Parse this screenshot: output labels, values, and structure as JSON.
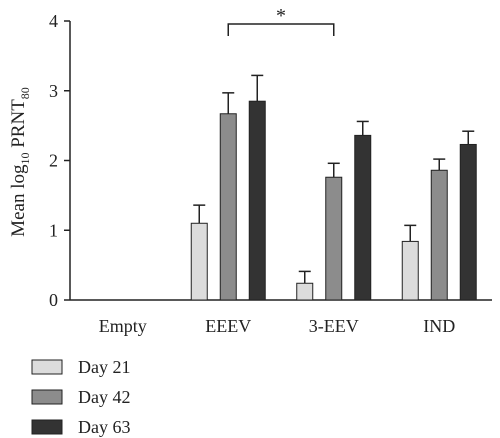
{
  "chart_data": {
    "type": "bar",
    "categories": [
      "Empty",
      "EEEV",
      "3-EEV",
      "IND"
    ],
    "series": [
      {
        "name": "Day 21",
        "color": "#dcdcdc",
        "values": [
          0,
          1.1,
          0.24,
          0.84
        ],
        "errors": [
          0,
          0.26,
          0.17,
          0.23
        ]
      },
      {
        "name": "Day 42",
        "color": "#8c8c8c",
        "values": [
          0,
          2.67,
          1.76,
          1.86
        ],
        "errors": [
          0,
          0.3,
          0.2,
          0.16
        ]
      },
      {
        "name": "Day 63",
        "color": "#333333",
        "values": [
          0,
          2.85,
          2.36,
          2.23
        ],
        "errors": [
          0,
          0.37,
          0.2,
          0.19
        ]
      }
    ],
    "ylabel": {
      "main": "Mean log",
      "sub1": "10",
      "mid": " PRNT",
      "sub2": "80"
    },
    "ylim": [
      0,
      4
    ],
    "yticks": [
      "0",
      "1",
      "2",
      "3",
      "4"
    ],
    "grid": false,
    "legend_position": "bottom-left",
    "significance": {
      "from_category": "EEEV",
      "to_category": "3-EEV",
      "label": "*"
    }
  }
}
